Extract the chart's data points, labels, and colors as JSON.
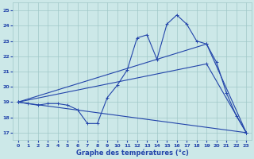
{
  "xlabel": "Graphe des températures (°c)",
  "bg_color": "#cce8e8",
  "grid_color": "#a0c8c8",
  "line_color": "#2244aa",
  "x_ticks": [
    0,
    1,
    2,
    3,
    4,
    5,
    6,
    7,
    8,
    9,
    10,
    11,
    12,
    13,
    14,
    15,
    16,
    17,
    18,
    19,
    20,
    21,
    22,
    23
  ],
  "ylim": [
    16.5,
    25.5
  ],
  "xlim": [
    -0.5,
    23.5
  ],
  "yticks": [
    17,
    18,
    19,
    20,
    21,
    22,
    23,
    24,
    25
  ],
  "series1": [
    19.0,
    18.9,
    18.8,
    18.9,
    18.9,
    18.8,
    18.5,
    17.6,
    17.6,
    19.3,
    20.1,
    21.1,
    23.2,
    23.4,
    21.8,
    24.1,
    24.7,
    24.1,
    23.0,
    22.8,
    21.6,
    19.6,
    18.1,
    17.0
  ],
  "series2_x": [
    0,
    19,
    23
  ],
  "series2_y": [
    19.0,
    22.8,
    17.0
  ],
  "series3_x": [
    0,
    19,
    23
  ],
  "series3_y": [
    19.0,
    21.5,
    17.0
  ],
  "series4_x": [
    0,
    23
  ],
  "series4_y": [
    19.0,
    17.0
  ],
  "xlabel_color": "#2244aa",
  "xlabel_bold": true,
  "axis_label_color": "#2244aa"
}
